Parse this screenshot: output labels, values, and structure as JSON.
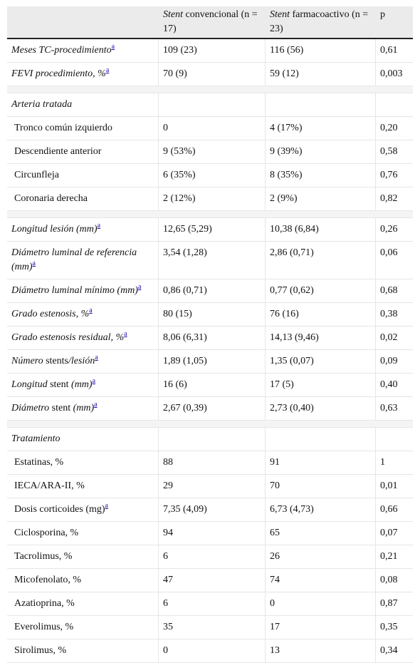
{
  "header": {
    "col1": "",
    "col2_em": "Stent",
    "col2_rest": " convencional (n = 17)",
    "col3_em": "Stent",
    "col3_rest": " farmacoactivo (n = 23)",
    "col4": "p"
  },
  "footnote_marker": "a",
  "rows": [
    {
      "type": "data",
      "label_em": "Meses TC-procedimiento",
      "label_rest": "",
      "fn": true,
      "v1": "109 (23)",
      "v2": "116 (56)",
      "p": "0,61"
    },
    {
      "type": "data",
      "label_em": "FEVI procedimiento, %",
      "label_rest": "",
      "fn": true,
      "v1": "70 (9)",
      "v2": "59 (12)",
      "p": "0,003"
    },
    {
      "type": "spacer"
    },
    {
      "type": "section",
      "label": "Arteria tratada"
    },
    {
      "type": "sub",
      "label": "Tronco común izquierdo",
      "v1": "0",
      "v2": "4 (17%)",
      "p": "0,20"
    },
    {
      "type": "sub",
      "label": "Descendiente anterior",
      "v1": "9 (53%)",
      "v2": "9 (39%)",
      "p": "0,58"
    },
    {
      "type": "sub",
      "label": "Circunfleja",
      "v1": "6 (35%)",
      "v2": "8 (35%)",
      "p": "0,76"
    },
    {
      "type": "sub",
      "label": "Coronaria derecha",
      "v1": "2 (12%)",
      "v2": "2 (9%)",
      "p": "0,82"
    },
    {
      "type": "spacer"
    },
    {
      "type": "data",
      "label_em": "Longitud lesión (mm)",
      "label_rest": "",
      "fn": true,
      "v1": "12,65 (5,29)",
      "v2": "10,38 (6,84)",
      "p": "0,26"
    },
    {
      "type": "data",
      "label_em": "Diámetro luminal de referencia (mm)",
      "label_rest": "",
      "fn": true,
      "v1": "3,54 (1,28)",
      "v2": "2,86 (0,71)",
      "p": "0,06"
    },
    {
      "type": "data",
      "label_em": "Diámetro luminal mínimo (mm)",
      "label_rest": "",
      "fn": true,
      "v1": "0,86 (0,71)",
      "v2": "0,77 (0,62)",
      "p": "0,68"
    },
    {
      "type": "data",
      "label_em": "Grado estenosis, %",
      "label_rest": "",
      "fn": true,
      "v1": "80 (15)",
      "v2": "76 (16)",
      "p": "0,38"
    },
    {
      "type": "data",
      "label_em": "Grado estenosis residual, %",
      "label_rest": "",
      "fn": true,
      "v1": "8,06 (6,31)",
      "v2": "14,13 (9,46)",
      "p": "0,02"
    },
    {
      "type": "mixed",
      "parts": [
        [
          "em",
          "Número"
        ],
        [
          "up",
          " stents"
        ],
        [
          "em",
          "/lesión"
        ]
      ],
      "fn": true,
      "v1": "1,89 (1,05)",
      "v2": "1,35 (0,07)",
      "p": "0,09"
    },
    {
      "type": "mixed",
      "parts": [
        [
          "em",
          "Longitud"
        ],
        [
          "up",
          " stent"
        ],
        [
          "em",
          " (mm)"
        ]
      ],
      "fn": true,
      "v1": "16 (6)",
      "v2": "17 (5)",
      "p": "0,40"
    },
    {
      "type": "mixed",
      "parts": [
        [
          "em",
          "Diámetro"
        ],
        [
          "up",
          " stent"
        ],
        [
          "em",
          " (mm)"
        ]
      ],
      "fn": true,
      "v1": "2,67 (0,39)",
      "v2": "2,73 (0,40)",
      "p": "0,63"
    },
    {
      "type": "spacer"
    },
    {
      "type": "section",
      "label": "Tratamiento"
    },
    {
      "type": "sub",
      "label": "Estatinas, %",
      "v1": "88",
      "v2": "91",
      "p": "1"
    },
    {
      "type": "sub",
      "label": "IECA/ARA-II, %",
      "v1": "29",
      "v2": "70",
      "p": "0,01"
    },
    {
      "type": "sub",
      "label": "Dosis corticoides (mg)",
      "fn": true,
      "v1": "7,35 (4,09)",
      "v2": "6,73 (4,73)",
      "p": "0,66"
    },
    {
      "type": "sub",
      "label": "Ciclosporina, %",
      "v1": "94",
      "v2": "65",
      "p": "0,07"
    },
    {
      "type": "sub",
      "label": "Tacrolimus, %",
      "v1": "6",
      "v2": "26",
      "p": "0,21"
    },
    {
      "type": "sub",
      "label": "Micofenolato, %",
      "v1": "47",
      "v2": "74",
      "p": "0,08"
    },
    {
      "type": "sub",
      "label": "Azatioprina, %",
      "v1": "6",
      "v2": "0",
      "p": "0,87"
    },
    {
      "type": "sub",
      "label": "Everolimus, %",
      "v1": "35",
      "v2": "17",
      "p": "0,35"
    },
    {
      "type": "sub",
      "label": "Sirolimus, %",
      "v1": "0",
      "v2": "13",
      "p": "0,34"
    }
  ]
}
